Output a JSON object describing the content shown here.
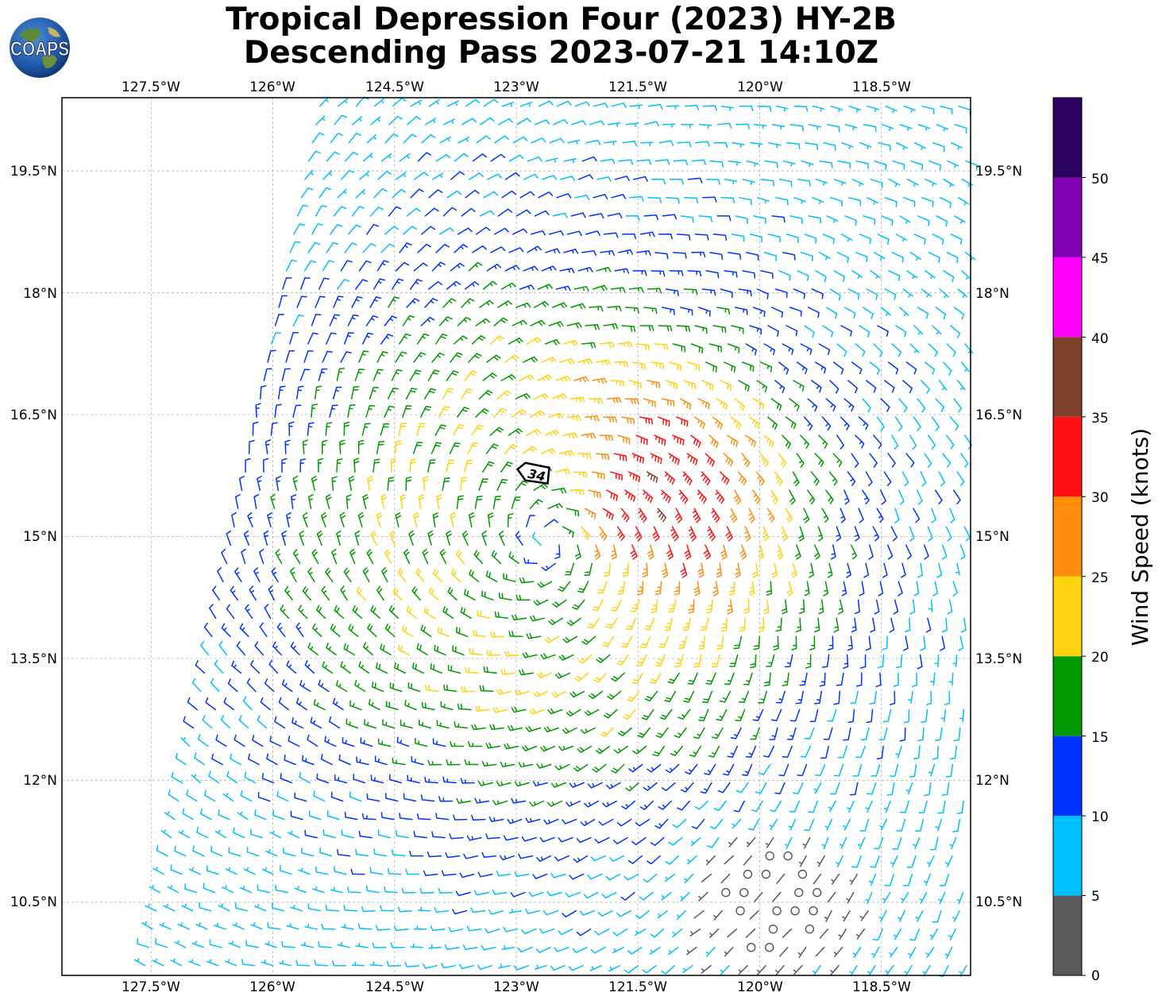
{
  "title": {
    "line1": "Tropical Depression Four (2023) HY-2B",
    "line2": "Descending Pass 2023-07-21 14:10Z"
  },
  "logo": {
    "text": "COAPS"
  },
  "axes": {
    "lon_ticks": [
      "127.5°W",
      "126°W",
      "124.5°W",
      "123°W",
      "121.5°W",
      "120°W",
      "118.5°W"
    ],
    "lat_ticks": [
      "19.5°N",
      "18°N",
      "16.5°N",
      "15°N",
      "13.5°N",
      "12°N",
      "10.5°N"
    ],
    "lon_range": [
      -128.6,
      -117.4
    ],
    "lat_range": [
      9.6,
      20.4
    ],
    "grid": true
  },
  "storm_marker": {
    "label": "34",
    "lon": -122.75,
    "lat": 15.75
  },
  "colorbar": {
    "label": "Wind Speed (knots)",
    "ticks": [
      "0",
      "5",
      "10",
      "15",
      "20",
      "25",
      "30",
      "35",
      "40",
      "45",
      "50"
    ],
    "bins": [
      {
        "min": 0,
        "max": 5,
        "color": "#595959"
      },
      {
        "min": 5,
        "max": 10,
        "color": "#00bfff"
      },
      {
        "min": 10,
        "max": 15,
        "color": "#0033ff"
      },
      {
        "min": 15,
        "max": 20,
        "color": "#009900"
      },
      {
        "min": 20,
        "max": 25,
        "color": "#ffd20f"
      },
      {
        "min": 25,
        "max": 30,
        "color": "#ff8c0a"
      },
      {
        "min": 30,
        "max": 35,
        "color": "#ff0f0f"
      },
      {
        "min": 35,
        "max": 40,
        "color": "#7f3f2a"
      },
      {
        "min": 40,
        "max": 45,
        "color": "#ff00ff"
      },
      {
        "min": 45,
        "max": 50,
        "color": "#8000b3"
      },
      {
        "min": 50,
        "max": 55,
        "color": "#2b005e"
      }
    ]
  },
  "chart_data": {
    "type": "wind-barb-map",
    "center": {
      "lon": -122.6,
      "lat": 14.95
    },
    "max_wind_kt": 34,
    "swath_west_edge": [
      [
        -125.5,
        20.4
      ],
      [
        -127.7,
        9.6
      ]
    ]
  }
}
